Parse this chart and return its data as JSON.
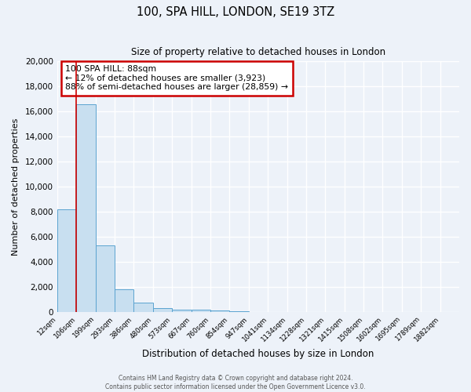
{
  "title": "100, SPA HILL, LONDON, SE19 3TZ",
  "subtitle": "Size of property relative to detached houses in London",
  "xlabel": "Distribution of detached houses by size in London",
  "ylabel": "Number of detached properties",
  "bin_labels": [
    "12sqm",
    "106sqm",
    "199sqm",
    "293sqm",
    "386sqm",
    "480sqm",
    "573sqm",
    "667sqm",
    "760sqm",
    "854sqm",
    "947sqm",
    "1041sqm",
    "1134sqm",
    "1228sqm",
    "1321sqm",
    "1415sqm",
    "1508sqm",
    "1602sqm",
    "1695sqm",
    "1789sqm",
    "1882sqm"
  ],
  "bar_values": [
    8200,
    16600,
    5300,
    1800,
    750,
    300,
    200,
    150,
    100,
    50,
    0,
    0,
    0,
    0,
    0,
    0,
    0,
    0,
    0,
    0,
    0
  ],
  "bar_color": "#c8dff0",
  "bar_edge_color": "#5ba3d0",
  "ylim": [
    0,
    20000
  ],
  "yticks": [
    0,
    2000,
    4000,
    6000,
    8000,
    10000,
    12000,
    14000,
    16000,
    18000,
    20000
  ],
  "vline_x_bin": 1,
  "vline_color": "#cc0000",
  "annotation_title": "100 SPA HILL: 88sqm",
  "annotation_line1": "← 12% of detached houses are smaller (3,923)",
  "annotation_line2": "88% of semi-detached houses are larger (28,859) →",
  "annotation_box_color": "#cc0000",
  "footer_line1": "Contains HM Land Registry data © Crown copyright and database right 2024.",
  "footer_line2": "Contains public sector information licensed under the Open Government Licence v3.0.",
  "background_color": "#edf2f9",
  "grid_color": "#ffffff"
}
